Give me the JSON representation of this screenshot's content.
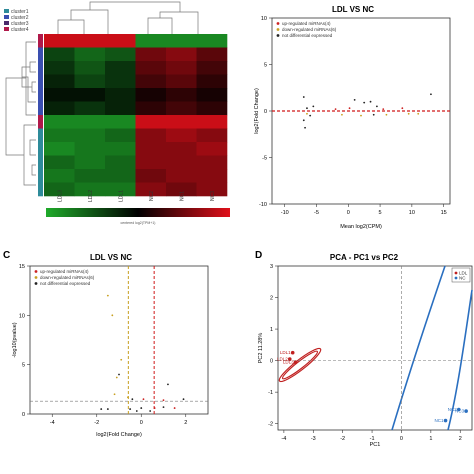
{
  "panel_letters": {
    "c": "C",
    "d": "D"
  },
  "heatmap": {
    "legend": [
      "cluster1",
      "cluster2",
      "cluster3",
      "cluster4"
    ],
    "legend_colors": [
      "#2e8b9a",
      "#3a4fb0",
      "#4b2a6b",
      "#b0194a"
    ],
    "columns": [
      "LDL3",
      "LDL2",
      "LDL1",
      "NC2",
      "NC1",
      "NC3"
    ],
    "row_clusters": [
      "cluster4",
      "cluster2",
      "cluster2",
      "cluster2",
      "cluster2",
      "cluster2",
      "cluster4",
      "cluster1",
      "cluster1",
      "cluster1",
      "cluster1",
      "cluster1"
    ],
    "colorbar_caption": "centered log2(TPM+1)",
    "colorbar_colors": [
      "#1faa2a",
      "#000000",
      "#e0101a"
    ]
  },
  "chart_data": [
    {
      "type": "heatmap",
      "title": "",
      "columns": [
        "LDL3",
        "LDL2",
        "LDL1",
        "NC2",
        "NC1",
        "NC3"
      ],
      "values": [
        [
          0.9,
          0.9,
          0.9,
          -0.8,
          -0.8,
          -0.8
        ],
        [
          -0.4,
          -0.6,
          -0.5,
          0.5,
          0.6,
          0.4
        ],
        [
          -0.3,
          -0.5,
          -0.3,
          0.4,
          0.5,
          0.3
        ],
        [
          -0.2,
          -0.4,
          -0.3,
          0.3,
          0.4,
          0.2
        ],
        [
          -0.1,
          -0.1,
          -0.2,
          0.1,
          0.2,
          0.1
        ],
        [
          -0.2,
          -0.3,
          -0.2,
          0.2,
          0.3,
          0.2
        ],
        [
          -0.8,
          -0.8,
          -0.8,
          0.9,
          0.9,
          0.9
        ],
        [
          -0.7,
          -0.7,
          -0.6,
          0.6,
          0.7,
          0.6
        ],
        [
          -0.8,
          -0.7,
          -0.7,
          0.6,
          0.6,
          0.7
        ],
        [
          -0.6,
          -0.7,
          -0.6,
          0.6,
          0.6,
          0.6
        ],
        [
          -0.7,
          -0.6,
          -0.6,
          0.5,
          0.6,
          0.6
        ],
        [
          -0.6,
          -0.7,
          -0.7,
          0.6,
          0.5,
          0.6
        ]
      ],
      "color_scale": [
        "#1faa2a",
        "#000000",
        "#e0101a"
      ]
    },
    {
      "type": "scatter",
      "title": "LDL VS NC",
      "xlabel": "Mean log2(CPM)",
      "ylabel": "log2(Fold Change)",
      "xlim": [
        -12,
        16
      ],
      "ylim": [
        -10,
        10
      ],
      "xticks": [
        -10,
        -5,
        0,
        5,
        10,
        15
      ],
      "yticks": [
        10,
        5,
        0,
        -5,
        -10
      ],
      "hline": 0,
      "legend_position": "top-left",
      "series": [
        {
          "name": "up-regulated miRNAs(4)",
          "color": "#cc2222",
          "points": [
            [
              0.2,
              0.3
            ],
            [
              -2.0,
              0.2
            ],
            [
              5.5,
              0.2
            ],
            [
              8.5,
              0.3
            ]
          ]
        },
        {
          "name": "down-regulated miRNAs(6)",
          "color": "#c8a020",
          "points": [
            [
              -6.5,
              -0.3
            ],
            [
              -1.0,
              -0.4
            ],
            [
              2.0,
              -0.5
            ],
            [
              6.0,
              -0.4
            ],
            [
              9.5,
              -0.3
            ],
            [
              11.0,
              -0.3
            ]
          ]
        },
        {
          "name": "not differential expressed",
          "color": "#222222",
          "points": [
            [
              -7.0,
              1.5
            ],
            [
              -6.5,
              0.3
            ],
            [
              -6.0,
              -0.5
            ],
            [
              -7.0,
              -1.0
            ],
            [
              -6.8,
              -1.8
            ],
            [
              -5.5,
              0.5
            ],
            [
              1.0,
              1.2
            ],
            [
              2.5,
              0.9
            ],
            [
              3.5,
              1.0
            ],
            [
              4.0,
              -0.4
            ],
            [
              4.5,
              0.5
            ],
            [
              13.0,
              1.8
            ]
          ]
        }
      ]
    },
    {
      "type": "scatter",
      "title": "LDL VS NC",
      "xlabel": "log2(Fold Change)",
      "ylabel": "-log10(pvalue)",
      "xlim": [
        -5,
        3
      ],
      "ylim": [
        0,
        15
      ],
      "xticks": [
        -4,
        -2,
        0,
        2
      ],
      "yticks": [
        0,
        5,
        10,
        15
      ],
      "vlines": [
        -0.58,
        0.58
      ],
      "hline": 1.3,
      "legend_position": "top-left",
      "series": [
        {
          "name": "up-regulated miRNAs(4)",
          "color": "#cc2222",
          "points": [
            [
              0.1,
              1.5
            ],
            [
              1.0,
              1.4
            ],
            [
              0.6,
              0.6
            ],
            [
              1.5,
              0.6
            ]
          ]
        },
        {
          "name": "down-regulated miRNAs(6)",
          "color": "#c8a020",
          "points": [
            [
              -1.5,
              12.0
            ],
            [
              -1.3,
              10.0
            ],
            [
              -0.9,
              5.5
            ],
            [
              -1.1,
              3.7
            ],
            [
              -1.2,
              2.0
            ],
            [
              -0.6,
              1.7
            ]
          ]
        },
        {
          "name": "not differential expressed",
          "color": "#222222",
          "points": [
            [
              -1.0,
              4.0
            ],
            [
              -0.4,
              1.5
            ],
            [
              1.2,
              3.0
            ],
            [
              1.9,
              1.5
            ],
            [
              -1.5,
              0.5
            ],
            [
              -1.8,
              0.5
            ],
            [
              -0.5,
              0.5
            ],
            [
              0.0,
              0.6
            ],
            [
              0.4,
              0.3
            ],
            [
              1.0,
              0.7
            ],
            [
              -0.2,
              0.3
            ]
          ]
        }
      ]
    },
    {
      "type": "scatter",
      "title": "PCA - PC1 vs PC2",
      "xlabel": "PC1 ",
      "ylabel": "PC2 11.28%",
      "xlim": [
        -4.2,
        2.4
      ],
      "ylim": [
        -2.2,
        3.0
      ],
      "xticks": [
        -4,
        -3,
        -2,
        -1,
        0,
        1,
        2
      ],
      "yticks": [
        3,
        2,
        1,
        0,
        -1,
        -2
      ],
      "vline": 0,
      "hline": 0,
      "legend_position": "top-right",
      "legend_entries": [
        "LDL",
        "NC"
      ],
      "series": [
        {
          "name": "LDL",
          "color": "#c02020",
          "points": [
            [
              -3.7,
              0.25
            ],
            [
              -3.8,
              0.05
            ],
            [
              -3.6,
              -0.05
            ]
          ],
          "labels": [
            "LDL1",
            "LDL2",
            "LDL3"
          ]
        },
        {
          "name": "NC",
          "color": "#2a6fc0",
          "points": [
            [
              1.5,
              -1.9
            ],
            [
              1.95,
              -1.55
            ],
            [
              2.2,
              -1.6
            ]
          ],
          "labels": [
            "NC1",
            "NC2",
            "NC3"
          ]
        }
      ]
    }
  ]
}
